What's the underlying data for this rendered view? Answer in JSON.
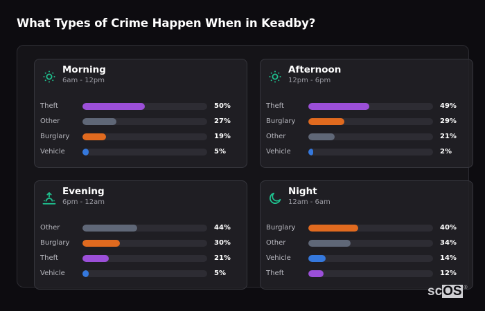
{
  "title": "What Types of Crime Happen When in Keadby?",
  "colors": {
    "Theft": "#9b4fd8",
    "Other": "#5f6777",
    "Burglary": "#e06a1f",
    "Vehicle": "#3578dc",
    "icon_accent": "#1fc08e",
    "background": "#0d0c10"
  },
  "cards": [
    {
      "name": "Morning",
      "range": "6am - 12pm",
      "icon": "sun-icon",
      "rows": [
        {
          "label": "Theft",
          "value": 50,
          "pct": "50%"
        },
        {
          "label": "Other",
          "value": 27,
          "pct": "27%"
        },
        {
          "label": "Burglary",
          "value": 19,
          "pct": "19%"
        },
        {
          "label": "Vehicle",
          "value": 5,
          "pct": "5%"
        }
      ]
    },
    {
      "name": "Afternoon",
      "range": "12pm - 6pm",
      "icon": "sun-icon",
      "rows": [
        {
          "label": "Theft",
          "value": 49,
          "pct": "49%"
        },
        {
          "label": "Burglary",
          "value": 29,
          "pct": "29%"
        },
        {
          "label": "Other",
          "value": 21,
          "pct": "21%"
        },
        {
          "label": "Vehicle",
          "value": 2,
          "pct": "2%"
        }
      ]
    },
    {
      "name": "Evening",
      "range": "6pm - 12am",
      "icon": "sunset-icon",
      "rows": [
        {
          "label": "Other",
          "value": 44,
          "pct": "44%"
        },
        {
          "label": "Burglary",
          "value": 30,
          "pct": "30%"
        },
        {
          "label": "Theft",
          "value": 21,
          "pct": "21%"
        },
        {
          "label": "Vehicle",
          "value": 5,
          "pct": "5%"
        }
      ]
    },
    {
      "name": "Night",
      "range": "12am - 6am",
      "icon": "moon-icon",
      "rows": [
        {
          "label": "Burglary",
          "value": 40,
          "pct": "40%"
        },
        {
          "label": "Other",
          "value": 34,
          "pct": "34%"
        },
        {
          "label": "Vehicle",
          "value": 14,
          "pct": "14%"
        },
        {
          "label": "Theft",
          "value": 12,
          "pct": "12%"
        }
      ]
    }
  ],
  "logo": {
    "sc": "sc",
    "os": "OS",
    "reg": "®"
  },
  "chart_data": [
    {
      "type": "bar",
      "orientation": "horizontal",
      "title": "Morning",
      "subtitle": "6am - 12pm",
      "categories": [
        "Theft",
        "Other",
        "Burglary",
        "Vehicle"
      ],
      "values": [
        50,
        27,
        19,
        5
      ],
      "unit": "%",
      "xlim": [
        0,
        100
      ]
    },
    {
      "type": "bar",
      "orientation": "horizontal",
      "title": "Afternoon",
      "subtitle": "12pm - 6pm",
      "categories": [
        "Theft",
        "Burglary",
        "Other",
        "Vehicle"
      ],
      "values": [
        49,
        29,
        21,
        2
      ],
      "unit": "%",
      "xlim": [
        0,
        100
      ]
    },
    {
      "type": "bar",
      "orientation": "horizontal",
      "title": "Evening",
      "subtitle": "6pm - 12am",
      "categories": [
        "Other",
        "Burglary",
        "Theft",
        "Vehicle"
      ],
      "values": [
        44,
        30,
        21,
        5
      ],
      "unit": "%",
      "xlim": [
        0,
        100
      ]
    },
    {
      "type": "bar",
      "orientation": "horizontal",
      "title": "Night",
      "subtitle": "12am - 6am",
      "categories": [
        "Burglary",
        "Other",
        "Vehicle",
        "Theft"
      ],
      "values": [
        40,
        34,
        14,
        12
      ],
      "unit": "%",
      "xlim": [
        0,
        100
      ]
    }
  ]
}
